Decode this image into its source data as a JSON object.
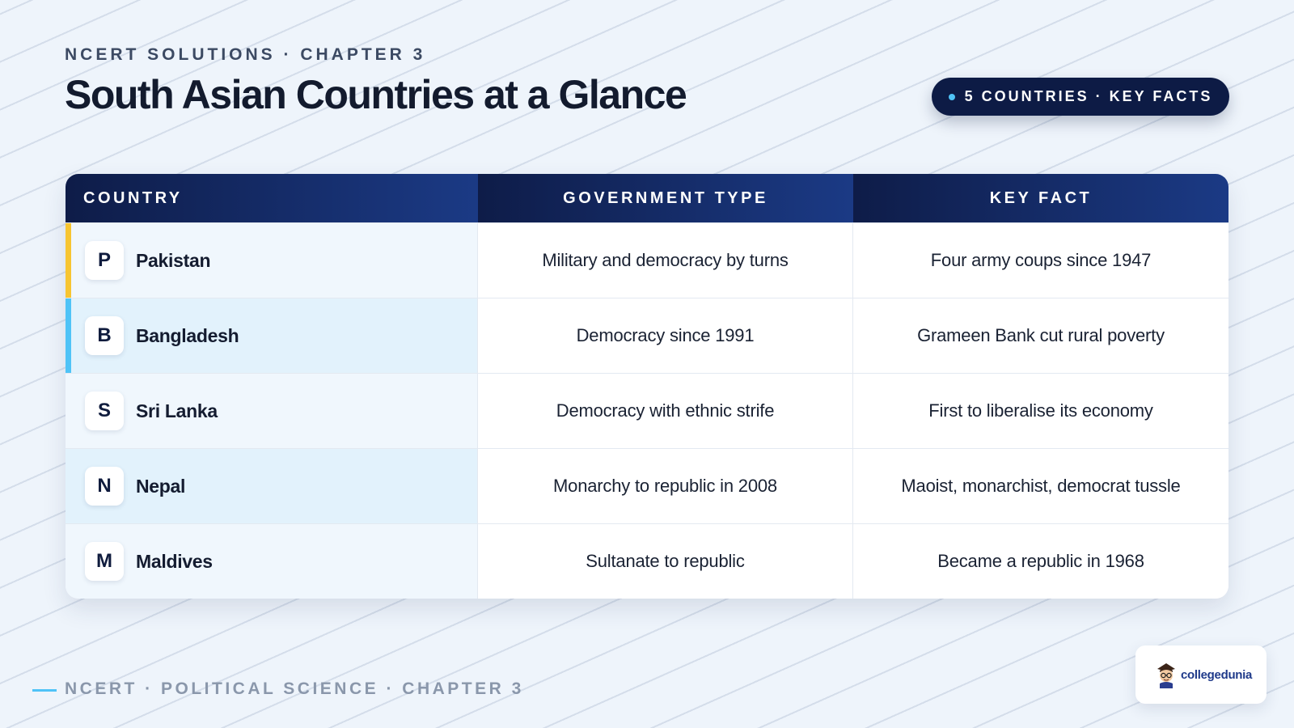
{
  "header": {
    "eyebrow": "NCERT SOLUTIONS · CHAPTER 3",
    "title": "South Asian Countries at a Glance",
    "badge": "5 COUNTRIES · KEY FACTS"
  },
  "table": {
    "columns": [
      "COUNTRY",
      "GOVERNMENT TYPE",
      "KEY FACT"
    ],
    "rows": [
      {
        "initial": "P",
        "country": "Pakistan",
        "government": "Military and democracy by turns",
        "fact": "Four army coups since 1947",
        "accent": "#f7c531"
      },
      {
        "initial": "B",
        "country": "Bangladesh",
        "government": "Democracy since 1991",
        "fact": "Grameen Bank cut rural poverty",
        "accent": "#4fc3f7"
      },
      {
        "initial": "S",
        "country": "Sri Lanka",
        "government": "Democracy with ethnic strife",
        "fact": "First to liberalise its economy",
        "accent": ""
      },
      {
        "initial": "N",
        "country": "Nepal",
        "government": "Monarchy to republic in 2008",
        "fact": "Maoist, monarchist, democrat tussle",
        "accent": ""
      },
      {
        "initial": "M",
        "country": "Maldives",
        "government": "Sultanate to republic",
        "fact": "Became a republic in 1968",
        "accent": ""
      }
    ]
  },
  "footer": {
    "text": "NCERT · POLITICAL SCIENCE · CHAPTER 3",
    "logo_text": "collegedunia"
  },
  "colors": {
    "header_dark": "#0e1c48",
    "header_light": "#1b3a85",
    "accent_yellow": "#f7c531",
    "accent_blue": "#4fc3f7"
  }
}
